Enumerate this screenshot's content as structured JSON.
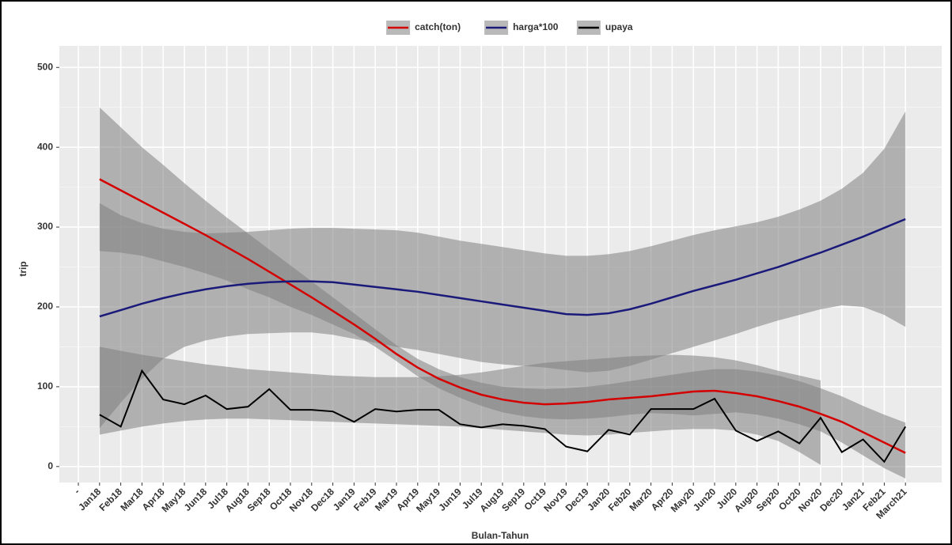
{
  "chart_data": {
    "type": "line",
    "x_label": "Bulan-Tahun",
    "y_label": "trip",
    "categories": [
      "-",
      "Jan18",
      "Feb18",
      "Mar18",
      "Apr18",
      "May18",
      "Jun18",
      "Jul18",
      "Aug18",
      "Sep18",
      "Oct18",
      "Nov18",
      "Dec18",
      "Jan19",
      "Feb19",
      "Mar19",
      "Apr19",
      "May19",
      "Jun19",
      "Jul19",
      "Aug19",
      "Sep19",
      "Oct19",
      "Nov19",
      "Dec19",
      "Jan20",
      "Feb20",
      "Mar20",
      "Apr20",
      "May20",
      "Jun20",
      "Jul20",
      "Aug20",
      "Sep20",
      "Oct20",
      "Nov20",
      "Dec20",
      "Jan21",
      "Feb21",
      "March21"
    ],
    "ylim": [
      -20,
      527
    ],
    "yticks": [
      0,
      100,
      200,
      300,
      400,
      500
    ],
    "grid": true,
    "legend": "top",
    "band_color": "#7f7f7f",
    "series": [
      {
        "name": "catch(ton)",
        "color": "#d40000",
        "values": [
          null,
          360,
          346,
          332,
          318,
          304,
          290,
          275,
          260,
          244,
          228,
          212,
          195,
          178,
          160,
          141,
          124,
          110,
          99,
          90,
          84,
          80,
          78,
          79,
          81,
          84,
          86,
          88,
          91,
          94,
          95,
          92,
          88,
          82,
          75,
          66,
          56,
          43,
          30,
          17
        ],
        "upper": [
          null,
          450,
          425,
          400,
          378,
          355,
          333,
          312,
          292,
          272,
          252,
          232,
          212,
          192,
          172,
          152,
          135,
          122,
          112,
          105,
          100,
          98,
          97,
          98,
          100,
          103,
          107,
          111,
          115,
          119,
          122,
          122,
          119,
          114,
          107,
          98,
          88,
          76,
          65,
          55
        ],
        "lower": [
          null,
          270,
          268,
          264,
          257,
          250,
          242,
          233,
          222,
          212,
          200,
          190,
          178,
          166,
          150,
          132,
          113,
          98,
          86,
          76,
          68,
          63,
          60,
          59,
          60,
          62,
          65,
          67,
          66,
          64,
          66,
          68,
          65,
          60,
          53,
          44,
          30,
          14,
          -2,
          -15
        ]
      },
      {
        "name": "harga*100",
        "color": "#1a1a7a",
        "values": [
          null,
          188,
          196,
          204,
          211,
          217,
          222,
          226,
          229,
          231,
          232,
          232,
          231,
          228,
          225,
          222,
          219,
          215,
          211,
          207,
          203,
          199,
          195,
          191,
          190,
          192,
          197,
          204,
          212,
          220,
          227,
          234,
          242,
          250,
          259,
          268,
          278,
          288,
          299,
          310
        ],
        "upper": [
          null,
          330,
          315,
          305,
          298,
          294,
          292,
          293,
          294,
          296,
          298,
          299,
          299,
          298,
          297,
          296,
          293,
          288,
          283,
          279,
          275,
          271,
          267,
          264,
          264,
          266,
          270,
          276,
          283,
          290,
          296,
          301,
          306,
          313,
          322,
          333,
          348,
          368,
          398,
          445
        ],
        "lower": [
          null,
          48,
          80,
          110,
          135,
          150,
          158,
          163,
          166,
          167,
          168,
          168,
          165,
          160,
          155,
          150,
          146,
          141,
          136,
          131,
          128,
          126,
          124,
          121,
          118,
          120,
          126,
          134,
          142,
          150,
          158,
          166,
          175,
          183,
          190,
          197,
          202,
          200,
          190,
          175
        ]
      },
      {
        "name": "upaya",
        "color": "#000000",
        "values": [
          null,
          65,
          50,
          120,
          84,
          78,
          89,
          72,
          75,
          97,
          71,
          71,
          69,
          56,
          72,
          69,
          71,
          71,
          53,
          49,
          53,
          51,
          47,
          25,
          19,
          46,
          40,
          72,
          72,
          72,
          85,
          45,
          32,
          44,
          29,
          61,
          18,
          34,
          6,
          50
        ],
        "upper": [
          null,
          150,
          145,
          140,
          136,
          132,
          128,
          125,
          122,
          120,
          118,
          116,
          114,
          113,
          112,
          112,
          112,
          113,
          115,
          118,
          122,
          126,
          130,
          132,
          134,
          136,
          138,
          139,
          140,
          139,
          137,
          133,
          127,
          120,
          114,
          108,
          null,
          null,
          null,
          null
        ],
        "lower": [
          null,
          40,
          45,
          50,
          54,
          57,
          59,
          60,
          60,
          59,
          58,
          57,
          56,
          55,
          54,
          53,
          52,
          51,
          50,
          48,
          46,
          44,
          42,
          40,
          39,
          40,
          42,
          44,
          46,
          47,
          47,
          45,
          40,
          32,
          18,
          2,
          null,
          null,
          null,
          null
        ]
      }
    ]
  }
}
